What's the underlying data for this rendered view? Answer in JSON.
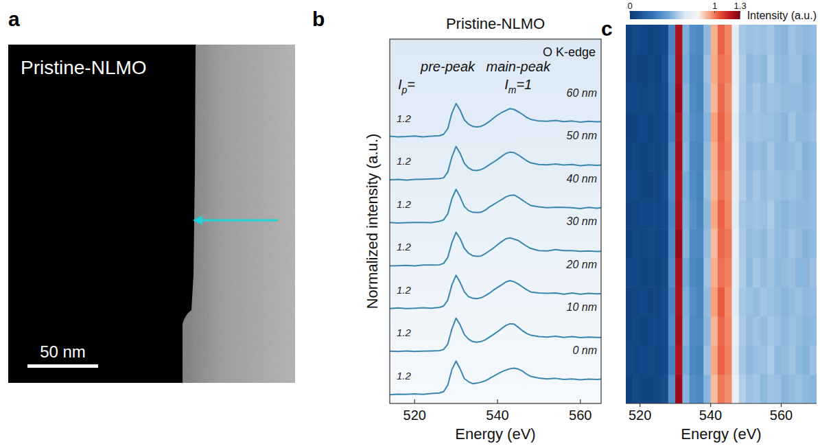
{
  "chart_data": [
    {
      "type": "image",
      "panel": "a",
      "title": "Pristine-NLMO",
      "xlim": [
        0,
        203
      ],
      "scale_bar": {
        "value": 50,
        "label": "50 nm"
      }
    },
    {
      "type": "line",
      "panel": "b",
      "title": "Pristine-NLMO",
      "x_label": "Energy (eV)",
      "y_label": "Normalized intensity (a.u.)",
      "annotations": {
        "edge": "O K-edge",
        "pre_peak_label": "pre-peak",
        "main_peak_label": "main-peak",
        "pre_peak_symbol": {
          "text": "I",
          "sub": "p",
          "after": "="
        },
        "main_peak_symbol": {
          "text": "I",
          "sub": "m",
          "after": "=1"
        }
      },
      "color": "#3a86ad",
      "xlim": [
        514,
        565
      ],
      "xticks": [
        520,
        540,
        560
      ],
      "ylim": [
        -0.3,
        12.6
      ],
      "tick_labels": "x",
      "x": [
        514,
        516,
        518,
        520,
        522,
        524,
        526,
        527,
        528,
        529,
        530,
        531,
        532,
        533,
        534,
        535,
        536,
        537,
        538,
        539,
        540,
        541,
        542,
        543,
        544,
        545,
        546,
        547,
        548,
        550,
        552,
        554,
        556,
        558,
        560,
        562,
        564,
        565
      ],
      "series": [
        {
          "name": "0 nm",
          "pre_peak_intensity": 1.2,
          "values": [
            0.01,
            0.03,
            0.02,
            0.04,
            0.02,
            0.05,
            0.07,
            0.12,
            0.35,
            0.9,
            1.2,
            0.92,
            0.58,
            0.47,
            0.4,
            0.42,
            0.45,
            0.5,
            0.58,
            0.66,
            0.74,
            0.82,
            0.88,
            0.93,
            0.95,
            0.92,
            0.85,
            0.74,
            0.66,
            0.6,
            0.57,
            0.59,
            0.55,
            0.57,
            0.54,
            0.56,
            0.55,
            0.56
          ]
        },
        {
          "name": "10 nm",
          "pre_peak_intensity": 1.2,
          "values": [
            0.03,
            0.02,
            0.04,
            0.02,
            0.03,
            0.04,
            0.05,
            0.09,
            0.28,
            0.82,
            1.2,
            0.96,
            0.62,
            0.46,
            0.37,
            0.35,
            0.37,
            0.43,
            0.52,
            0.62,
            0.72,
            0.83,
            0.94,
            1.0,
            0.99,
            0.88,
            0.76,
            0.66,
            0.6,
            0.55,
            0.53,
            0.56,
            0.52,
            0.55,
            0.51,
            0.53,
            0.52,
            0.52
          ]
        },
        {
          "name": "20 nm",
          "pre_peak_intensity": 1.2,
          "values": [
            0.02,
            0.04,
            0.02,
            0.03,
            0.05,
            0.03,
            0.06,
            0.11,
            0.32,
            0.86,
            1.2,
            0.94,
            0.61,
            0.44,
            0.39,
            0.37,
            0.4,
            0.47,
            0.56,
            0.67,
            0.77,
            0.86,
            0.96,
            1.01,
            0.97,
            0.89,
            0.79,
            0.69,
            0.61,
            0.57,
            0.56,
            0.57,
            0.53,
            0.57,
            0.53,
            0.56,
            0.54,
            0.55
          ]
        },
        {
          "name": "30 nm",
          "pre_peak_intensity": 1.2,
          "values": [
            0.01,
            0.02,
            0.03,
            0.01,
            0.04,
            0.04,
            0.05,
            0.1,
            0.31,
            0.84,
            1.2,
            0.97,
            0.63,
            0.46,
            0.37,
            0.35,
            0.36,
            0.44,
            0.54,
            0.64,
            0.76,
            0.87,
            0.97,
            1.0,
            0.96,
            0.91,
            0.81,
            0.71,
            0.63,
            0.55,
            0.54,
            0.59,
            0.55,
            0.55,
            0.53,
            0.54,
            0.52,
            0.53
          ]
        },
        {
          "name": "40 nm",
          "pre_peak_intensity": 1.2,
          "values": [
            0.03,
            0.01,
            0.02,
            0.03,
            0.03,
            0.02,
            0.07,
            0.12,
            0.33,
            0.87,
            1.2,
            0.93,
            0.59,
            0.45,
            0.39,
            0.38,
            0.39,
            0.46,
            0.57,
            0.66,
            0.75,
            0.84,
            0.93,
            0.99,
            1.0,
            0.92,
            0.82,
            0.72,
            0.63,
            0.58,
            0.55,
            0.57,
            0.56,
            0.55,
            0.52,
            0.56,
            0.53,
            0.55
          ]
        },
        {
          "name": "50 nm",
          "pre_peak_intensity": 1.2,
          "values": [
            0.02,
            0.03,
            0.01,
            0.03,
            0.04,
            0.05,
            0.06,
            0.09,
            0.29,
            0.83,
            1.2,
            0.95,
            0.6,
            0.44,
            0.36,
            0.35,
            0.38,
            0.45,
            0.55,
            0.64,
            0.74,
            0.85,
            0.95,
            1.0,
            0.98,
            0.9,
            0.8,
            0.7,
            0.62,
            0.56,
            0.55,
            0.58,
            0.54,
            0.56,
            0.52,
            0.55,
            0.53,
            0.54
          ]
        },
        {
          "name": "60 nm",
          "pre_peak_intensity": 1.2,
          "values": [
            0.04,
            0.02,
            0.03,
            0.05,
            0.02,
            0.04,
            0.06,
            0.11,
            0.31,
            0.86,
            1.2,
            0.96,
            0.62,
            0.47,
            0.39,
            0.37,
            0.39,
            0.46,
            0.56,
            0.68,
            0.79,
            0.88,
            0.95,
            1.02,
            0.99,
            0.91,
            0.82,
            0.71,
            0.64,
            0.58,
            0.57,
            0.6,
            0.56,
            0.58,
            0.54,
            0.57,
            0.55,
            0.56
          ]
        }
      ]
    },
    {
      "type": "heatmap",
      "panel": "c",
      "x_label": "Energy (eV)",
      "xlim": [
        516,
        570
      ],
      "xticks": [
        520,
        540,
        560
      ],
      "ylim": [
        -2.5,
        62.5
      ],
      "tick_labels": "x",
      "x": [
        517,
        519,
        521,
        523,
        525,
        527,
        529,
        531,
        533,
        535,
        537,
        539,
        541,
        543,
        545,
        547,
        549,
        551,
        553,
        555,
        557,
        559,
        561,
        563,
        565,
        567,
        569
      ],
      "y": [
        0,
        5,
        10,
        15,
        20,
        25,
        30,
        35,
        40,
        45,
        50,
        55,
        60
      ],
      "cells": [
        [
          0.04,
          0.07,
          0.05,
          0.05,
          0.06,
          0.09,
          0.38,
          1.24,
          0.5,
          0.37,
          0.35,
          0.5,
          0.9,
          1.0,
          0.97,
          0.72,
          0.57,
          0.53,
          0.55,
          0.51,
          0.54,
          0.53,
          0.5,
          0.52,
          0.53,
          0.51,
          0.5
        ],
        [
          0.06,
          0.05,
          0.06,
          0.07,
          0.05,
          0.07,
          0.33,
          1.2,
          0.47,
          0.35,
          0.33,
          0.53,
          0.93,
          1.03,
          0.99,
          0.69,
          0.55,
          0.51,
          0.53,
          0.53,
          0.56,
          0.51,
          0.52,
          0.54,
          0.51,
          0.49,
          0.53
        ],
        [
          0.05,
          0.06,
          0.04,
          0.06,
          0.06,
          0.08,
          0.36,
          1.23,
          0.49,
          0.36,
          0.35,
          0.51,
          0.91,
          1.02,
          0.98,
          0.71,
          0.56,
          0.52,
          0.54,
          0.52,
          0.55,
          0.53,
          0.51,
          0.53,
          0.52,
          0.5,
          0.51
        ],
        [
          0.05,
          0.05,
          0.06,
          0.05,
          0.05,
          0.09,
          0.34,
          1.21,
          0.48,
          0.37,
          0.34,
          0.52,
          0.94,
          1.04,
          0.97,
          0.68,
          0.55,
          0.53,
          0.52,
          0.54,
          0.53,
          0.52,
          0.5,
          0.52,
          0.53,
          0.51,
          0.52
        ],
        [
          0.06,
          0.06,
          0.05,
          0.06,
          0.04,
          0.08,
          0.37,
          1.22,
          0.46,
          0.35,
          0.33,
          0.54,
          0.92,
          1.01,
          0.99,
          0.7,
          0.57,
          0.51,
          0.55,
          0.52,
          0.54,
          0.51,
          0.52,
          0.53,
          0.5,
          0.5,
          0.53
        ],
        [
          0.04,
          0.06,
          0.05,
          0.07,
          0.05,
          0.07,
          0.35,
          1.25,
          0.49,
          0.36,
          0.35,
          0.52,
          0.9,
          1.02,
          1.0,
          0.71,
          0.56,
          0.52,
          0.53,
          0.51,
          0.55,
          0.52,
          0.51,
          0.54,
          0.52,
          0.49,
          0.51
        ],
        [
          0.05,
          0.05,
          0.06,
          0.06,
          0.06,
          0.08,
          0.34,
          1.22,
          0.48,
          0.38,
          0.34,
          0.51,
          0.93,
          1.03,
          0.98,
          0.69,
          0.55,
          0.53,
          0.54,
          0.53,
          0.56,
          0.52,
          0.5,
          0.52,
          0.51,
          0.51,
          0.52
        ],
        [
          0.06,
          0.07,
          0.05,
          0.05,
          0.05,
          0.09,
          0.36,
          1.2,
          0.47,
          0.36,
          0.33,
          0.53,
          0.91,
          1.01,
          0.97,
          0.7,
          0.57,
          0.52,
          0.55,
          0.52,
          0.54,
          0.53,
          0.52,
          0.53,
          0.52,
          0.5,
          0.52
        ],
        [
          0.05,
          0.06,
          0.04,
          0.06,
          0.05,
          0.08,
          0.37,
          1.23,
          0.5,
          0.35,
          0.34,
          0.52,
          0.92,
          1.02,
          0.99,
          0.72,
          0.56,
          0.51,
          0.53,
          0.51,
          0.55,
          0.51,
          0.51,
          0.52,
          0.53,
          0.49,
          0.51
        ],
        [
          0.04,
          0.05,
          0.06,
          0.05,
          0.06,
          0.07,
          0.33,
          1.21,
          0.48,
          0.37,
          0.35,
          0.5,
          0.94,
          1.03,
          0.98,
          0.69,
          0.55,
          0.53,
          0.54,
          0.53,
          0.53,
          0.52,
          0.5,
          0.54,
          0.51,
          0.51,
          0.53
        ],
        [
          0.06,
          0.06,
          0.05,
          0.07,
          0.05,
          0.08,
          0.35,
          1.24,
          0.49,
          0.36,
          0.33,
          0.52,
          0.91,
          1.02,
          0.97,
          0.71,
          0.56,
          0.52,
          0.55,
          0.52,
          0.54,
          0.53,
          0.52,
          0.52,
          0.52,
          0.5,
          0.52
        ],
        [
          0.05,
          0.05,
          0.05,
          0.06,
          0.04,
          0.09,
          0.36,
          1.22,
          0.47,
          0.35,
          0.34,
          0.53,
          0.93,
          1.01,
          0.99,
          0.7,
          0.57,
          0.51,
          0.53,
          0.51,
          0.56,
          0.52,
          0.51,
          0.53,
          0.53,
          0.49,
          0.51
        ],
        [
          0.05,
          0.07,
          0.06,
          0.05,
          0.06,
          0.08,
          0.34,
          1.21,
          0.48,
          0.37,
          0.35,
          0.51,
          0.92,
          1.03,
          0.98,
          0.69,
          0.55,
          0.53,
          0.54,
          0.53,
          0.55,
          0.51,
          0.5,
          0.54,
          0.52,
          0.51,
          0.52
        ]
      ],
      "colorbar": {
        "label": "Intensity (a.u.)",
        "range": [
          0,
          1.3
        ],
        "ticks": [
          0,
          1,
          1.3
        ]
      }
    }
  ]
}
